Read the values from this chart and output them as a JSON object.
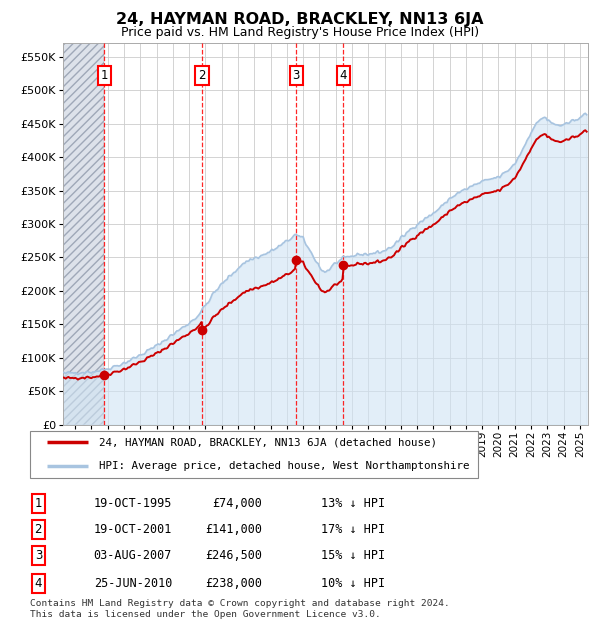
{
  "title": "24, HAYMAN ROAD, BRACKLEY, NN13 6JA",
  "subtitle": "Price paid vs. HM Land Registry's House Price Index (HPI)",
  "ytick_values": [
    0,
    50000,
    100000,
    150000,
    200000,
    250000,
    300000,
    350000,
    400000,
    450000,
    500000,
    550000
  ],
  "ylim": [
    0,
    570000
  ],
  "xlim_start": 1993.25,
  "xlim_end": 2025.5,
  "hpi_color": "#a8c4e0",
  "hpi_fill_color": "#d0e4f4",
  "price_color": "#cc0000",
  "hatch_color": "#c8ccd8",
  "legend1": "24, HAYMAN ROAD, BRACKLEY, NN13 6JA (detached house)",
  "legend2": "HPI: Average price, detached house, West Northamptonshire",
  "transactions": [
    {
      "num": 1,
      "date": "19-OCT-1995",
      "price": 74000,
      "pct": "13%",
      "year": 1995.79
    },
    {
      "num": 2,
      "date": "19-OCT-2001",
      "price": 141000,
      "pct": "17%",
      "year": 2001.79
    },
    {
      "num": 3,
      "date": "03-AUG-2007",
      "price": 246500,
      "pct": "15%",
      "year": 2007.58
    },
    {
      "num": 4,
      "date": "25-JUN-2010",
      "price": 238000,
      "pct": "10%",
      "year": 2010.48
    }
  ],
  "footer": "Contains HM Land Registry data © Crown copyright and database right 2024.\nThis data is licensed under the Open Government Licence v3.0."
}
